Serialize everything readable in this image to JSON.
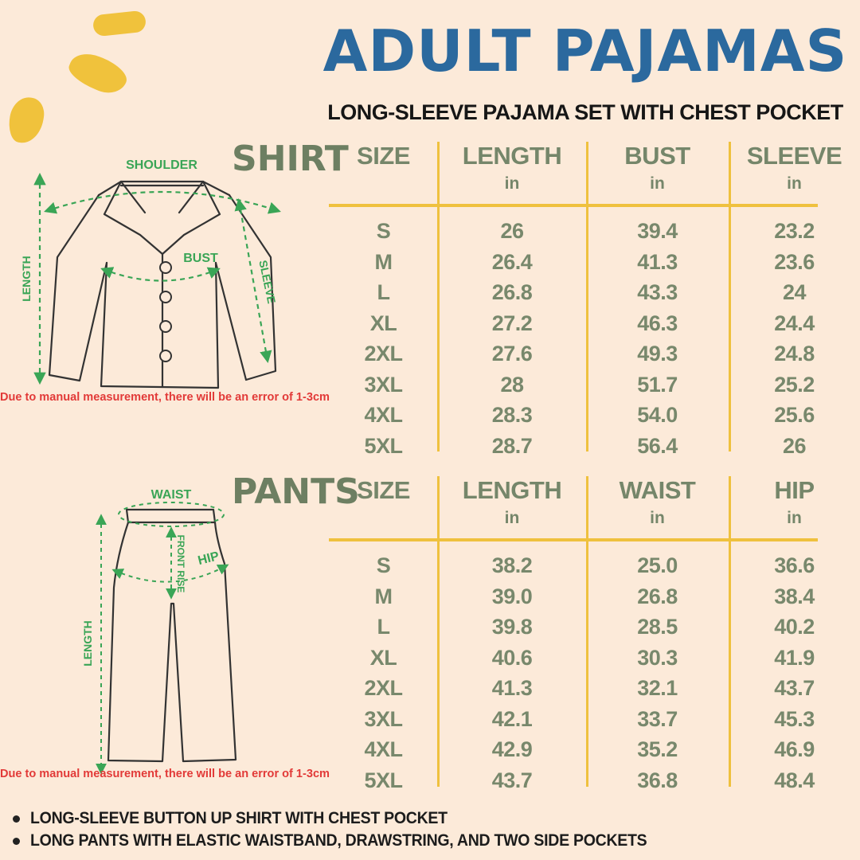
{
  "header": {
    "title": "ADULT PAJAMAS",
    "subtitle": "LONG-SLEEVE PAJAMA SET WITH CHEST POCKET"
  },
  "shirt_section": {
    "label": "SHIRT",
    "diagram_labels": {
      "shoulder": "SHOULDER",
      "length": "LENGTH",
      "bust": "BUST",
      "sleeve": "SLEEVE"
    },
    "note": "Due to manual measurement, there will be an error of 1-3cm",
    "table": {
      "columns": [
        {
          "label": "SIZE",
          "unit": ""
        },
        {
          "label": "LENGTH",
          "unit": "in"
        },
        {
          "label": "BUST",
          "unit": "in"
        },
        {
          "label": "SLEEVE",
          "unit": "in"
        }
      ],
      "rows": [
        [
          "S",
          "26",
          "39.4",
          "23.2"
        ],
        [
          "M",
          "26.4",
          "41.3",
          "23.6"
        ],
        [
          "L",
          "26.8",
          "43.3",
          "24"
        ],
        [
          "XL",
          "27.2",
          "46.3",
          "24.4"
        ],
        [
          "2XL",
          "27.6",
          "49.3",
          "24.8"
        ],
        [
          "3XL",
          "28",
          "51.7",
          "25.2"
        ],
        [
          "4XL",
          "28.3",
          "54.0",
          "25.6"
        ],
        [
          "5XL",
          "28.7",
          "56.4",
          "26"
        ]
      ]
    }
  },
  "pants_section": {
    "label": "PANTS",
    "diagram_labels": {
      "waist": "WAIST",
      "front_rise": "FRONT RISE",
      "hip": "HIP",
      "length": "LENGTH"
    },
    "note": "Due to manual measurement, there will be an error of 1-3cm",
    "table": {
      "columns": [
        {
          "label": "SIZE",
          "unit": ""
        },
        {
          "label": "LENGTH",
          "unit": "in"
        },
        {
          "label": "WAIST",
          "unit": "in"
        },
        {
          "label": "HIP",
          "unit": "in"
        }
      ],
      "rows": [
        [
          "S",
          "38.2",
          "25.0",
          "36.6"
        ],
        [
          "M",
          "39.0",
          "26.8",
          "38.4"
        ],
        [
          "L",
          "39.8",
          "28.5",
          "40.2"
        ],
        [
          "XL",
          "40.6",
          "30.3",
          "41.9"
        ],
        [
          "2XL",
          "41.3",
          "32.1",
          "43.7"
        ],
        [
          "3XL",
          "42.1",
          "33.7",
          "45.3"
        ],
        [
          "4XL",
          "42.9",
          "35.2",
          "46.9"
        ],
        [
          "5XL",
          "43.7",
          "36.8",
          "48.4"
        ]
      ]
    }
  },
  "footer": {
    "bullets": [
      "LONG-SLEEVE BUTTON UP SHIRT WITH CHEST POCKET",
      "LONG PANTS WITH ELASTIC WAISTBAND, DRAWSTRING, AND TWO SIDE POCKETS"
    ]
  },
  "colors": {
    "background": "#fcead9",
    "title_blue": "#2b699e",
    "table_green": "#78886c",
    "stamp_green": "#6d7f62",
    "divider_yellow": "#efc13e",
    "deco_yellow": "#f0c23c",
    "diagram_green": "#3aa556",
    "note_red": "#e23a38"
  }
}
